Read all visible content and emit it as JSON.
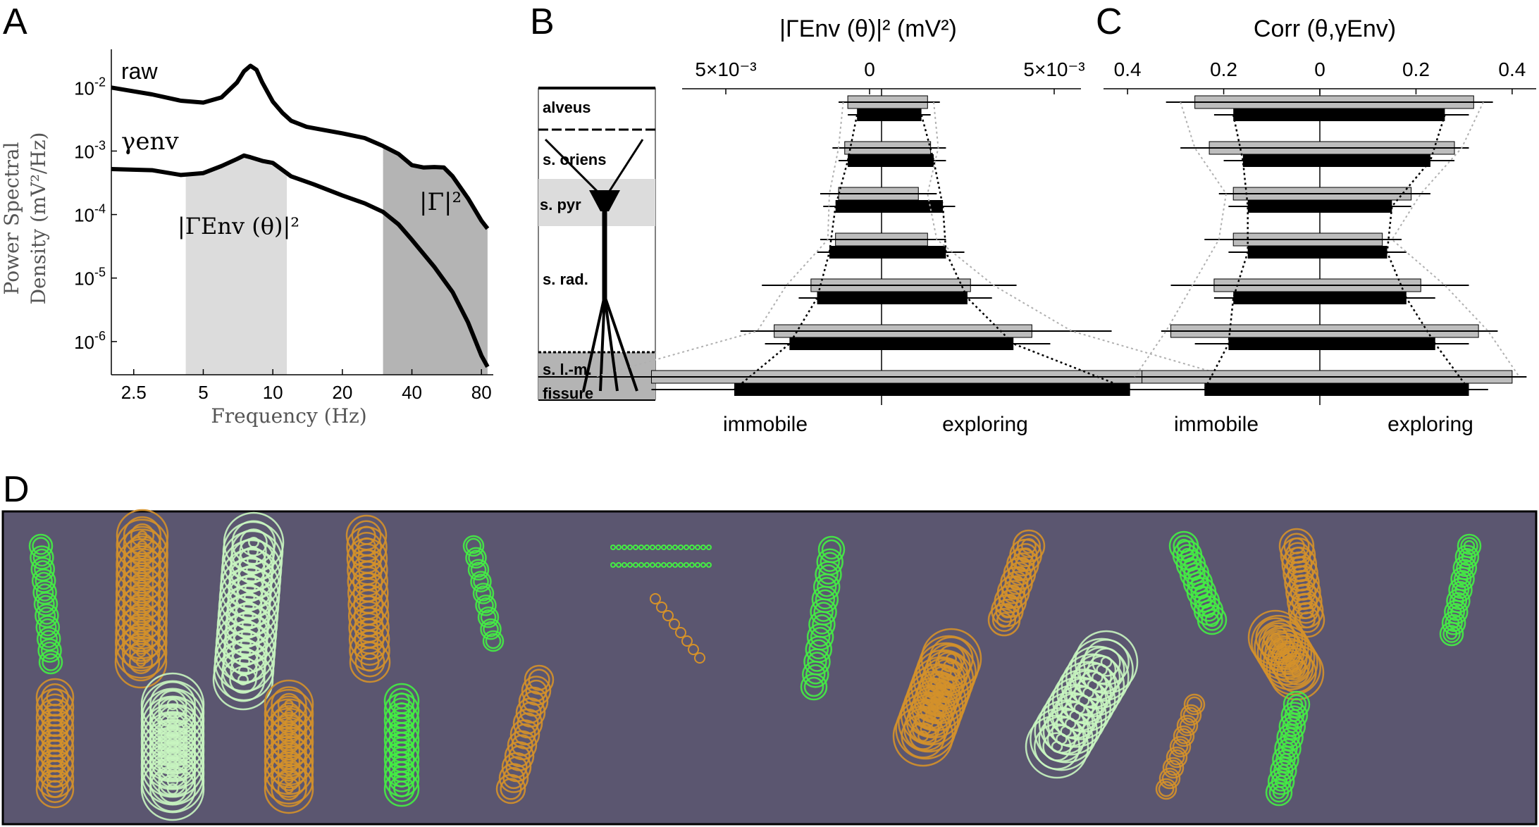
{
  "panel_labels": {
    "a": "A",
    "b": "B",
    "c": "C",
    "d": "D"
  },
  "colors": {
    "black": "#000000",
    "band_light": "#dcdcdc",
    "band_dark": "#b4b4b4",
    "bar_gray": "#bdbdbd",
    "dotted_gray": "#b0b0b0",
    "panel_d_bg": "#5b5670",
    "green": "#44ee44",
    "light_green": "#c8f5c0",
    "orange": "#d4912a"
  },
  "chart_data": [
    {
      "panel": "A",
      "type": "line",
      "log_x": true,
      "log_y": true,
      "xlabel": "Frequency (Hz)",
      "ylabel_line1": "Power Spectral",
      "ylabel_line2": "Density (mV²/Hz)",
      "xlim": [
        2.0,
        90.0
      ],
      "ylim": [
        3e-07,
        0.04
      ],
      "x_ticks": [
        2.5,
        5,
        10,
        20,
        40,
        80
      ],
      "x_tick_labels": [
        "2.5",
        "5",
        "10",
        "20",
        "40",
        "80"
      ],
      "y_ticks": [
        1e-06,
        1e-05,
        0.0001,
        0.001,
        0.01
      ],
      "y_tick_bases": [
        "10",
        "10",
        "10",
        "10",
        "10"
      ],
      "y_tick_exps": [
        "-6",
        "-5",
        "-4",
        "-3",
        "-2"
      ],
      "bands": [
        {
          "x0": 4.2,
          "x1": 11.5,
          "color": "#dcdcdc"
        },
        {
          "x0": 30.0,
          "x1": 85.0,
          "color": "#b4b4b4"
        }
      ],
      "band_label_theta": "|ΓEnv (θ)|²",
      "band_label_gamma": "|Γ|²",
      "series": [
        {
          "name": "raw",
          "x": [
            2.0,
            3.0,
            4.0,
            5.0,
            6.0,
            7.0,
            7.5,
            8.0,
            8.5,
            9.0,
            10.0,
            11.0,
            12.0,
            14.0,
            16.0,
            20.0,
            25.0,
            30.0,
            35.0,
            40.0,
            45.0,
            50.0,
            55.0,
            60.0,
            70.0,
            80.0,
            85.0
          ],
          "y": [
            0.01,
            0.0078,
            0.0062,
            0.0058,
            0.007,
            0.012,
            0.018,
            0.022,
            0.019,
            0.012,
            0.006,
            0.004,
            0.003,
            0.0024,
            0.0022,
            0.0019,
            0.0016,
            0.0012,
            0.0009,
            0.0006,
            0.00055,
            0.00056,
            0.00055,
            0.0004,
            0.00018,
            8e-05,
            6e-05
          ]
        },
        {
          "name": "γenv",
          "x": [
            2.0,
            3.0,
            4.0,
            5.0,
            6.0,
            7.0,
            7.5,
            8.0,
            9.0,
            10.0,
            12.0,
            15.0,
            20.0,
            25.0,
            30.0,
            35.0,
            40.0,
            50.0,
            60.0,
            70.0,
            80.0,
            85.0
          ],
          "y": [
            0.00052,
            0.0005,
            0.00042,
            0.00045,
            0.00058,
            0.00075,
            0.00085,
            0.0008,
            0.0007,
            0.00065,
            0.0004,
            0.0003,
            0.0002,
            0.00015,
            0.00011,
            7e-05,
            4e-05,
            1.5e-05,
            6e-06,
            2e-06,
            6e-07,
            4e-07
          ]
        }
      ]
    },
    {
      "panel": "B",
      "type": "bar",
      "orientation": "horizontal-mirrored",
      "top_title": "|ΓEnv (θ)|² (mV²)",
      "x_ticks_labels": [
        "5×10⁻³",
        "0",
        "5×10⁻³"
      ],
      "xlim": [
        -0.0065,
        0.0065
      ],
      "bottom_left": "immobile",
      "bottom_right": "exploring",
      "layers": [
        "alveus",
        "s. oriens",
        "s. pyr",
        "s. rad.",
        "s. l.-m.",
        "fissure"
      ],
      "rows": [
        {
          "gray_l": 0.0011,
          "gray_r": 0.0015,
          "gray_el": 0.0003,
          "gray_er": 0.0004,
          "black_l": 0.0008,
          "black_r": 0.0013,
          "black_el": 0.0003,
          "black_er": 0.0003
        },
        {
          "gray_l": 0.0012,
          "gray_r": 0.0016,
          "gray_el": 0.0004,
          "gray_er": 0.0005,
          "black_l": 0.0011,
          "black_r": 0.0017,
          "black_el": 0.0003,
          "black_er": 0.0004
        },
        {
          "gray_l": 0.0014,
          "gray_r": 0.0012,
          "gray_el": 0.0006,
          "gray_er": 0.0006,
          "black_l": 0.0015,
          "black_r": 0.002,
          "black_el": 0.0004,
          "black_er": 0.0004
        },
        {
          "gray_l": 0.0015,
          "gray_r": 0.0015,
          "gray_el": 0.0005,
          "gray_er": 0.0006,
          "black_l": 0.0017,
          "black_r": 0.0021,
          "black_el": 0.0004,
          "black_er": 0.0006
        },
        {
          "gray_l": 0.0023,
          "gray_r": 0.0029,
          "gray_el": 0.0016,
          "gray_er": 0.0015,
          "black_l": 0.0021,
          "black_r": 0.0028,
          "black_el": 0.0006,
          "black_er": 0.0008
        },
        {
          "gray_l": 0.0035,
          "gray_r": 0.0049,
          "gray_el": 0.0011,
          "gray_er": 0.0026,
          "black_l": 0.003,
          "black_r": 0.0043,
          "black_el": 0.0008,
          "black_er": 0.0012
        },
        {
          "gray_l": 0.0075,
          "gray_r": 0.0099,
          "gray_el": 0.0037,
          "gray_er": 0.0029,
          "black_l": 0.0048,
          "black_r": 0.0081,
          "black_el": 0.0027,
          "black_er": 0.0039
        }
      ]
    },
    {
      "panel": "C",
      "type": "bar",
      "orientation": "horizontal-mirrored",
      "top_title": "Corr (θ,γEnv)",
      "x_ticks": [
        -0.4,
        -0.2,
        0,
        0.2,
        0.4
      ],
      "x_tick_labels": [
        "0.4",
        "0.2",
        "0",
        "0.2",
        "0.4"
      ],
      "xlim": [
        -0.45,
        0.45
      ],
      "bottom_left": "immobile",
      "bottom_right": "exploring",
      "rows": [
        {
          "gray_l": 0.26,
          "gray_r": 0.32,
          "gray_el": 0.06,
          "gray_er": 0.04,
          "black_l": 0.18,
          "black_r": 0.26,
          "black_el": 0.04,
          "black_er": 0.05
        },
        {
          "gray_l": 0.23,
          "gray_r": 0.28,
          "gray_el": 0.06,
          "gray_er": 0.03,
          "black_l": 0.16,
          "black_r": 0.23,
          "black_el": 0.04,
          "black_er": 0.05
        },
        {
          "gray_l": 0.18,
          "gray_r": 0.19,
          "gray_el": 0.03,
          "gray_er": 0.04,
          "black_l": 0.15,
          "black_r": 0.15,
          "black_el": 0.04,
          "black_er": 0.04
        },
        {
          "gray_l": 0.18,
          "gray_r": 0.13,
          "gray_el": 0.06,
          "gray_er": 0.04,
          "black_l": 0.15,
          "black_r": 0.14,
          "black_el": 0.04,
          "black_er": 0.04
        },
        {
          "gray_l": 0.22,
          "gray_r": 0.21,
          "gray_el": 0.09,
          "gray_er": 0.1,
          "black_l": 0.18,
          "black_r": 0.18,
          "black_el": 0.04,
          "black_er": 0.06
        },
        {
          "gray_l": 0.31,
          "gray_r": 0.33,
          "gray_el": 0.02,
          "gray_er": 0.04,
          "black_l": 0.19,
          "black_r": 0.24,
          "black_el": 0.07,
          "black_er": 0.07
        },
        {
          "gray_l": 0.37,
          "gray_r": 0.4,
          "gray_el": 0.03,
          "gray_er": 0.03,
          "black_l": 0.24,
          "black_r": 0.31,
          "black_el": 0.03,
          "black_er": 0.04
        }
      ]
    }
  ]
}
